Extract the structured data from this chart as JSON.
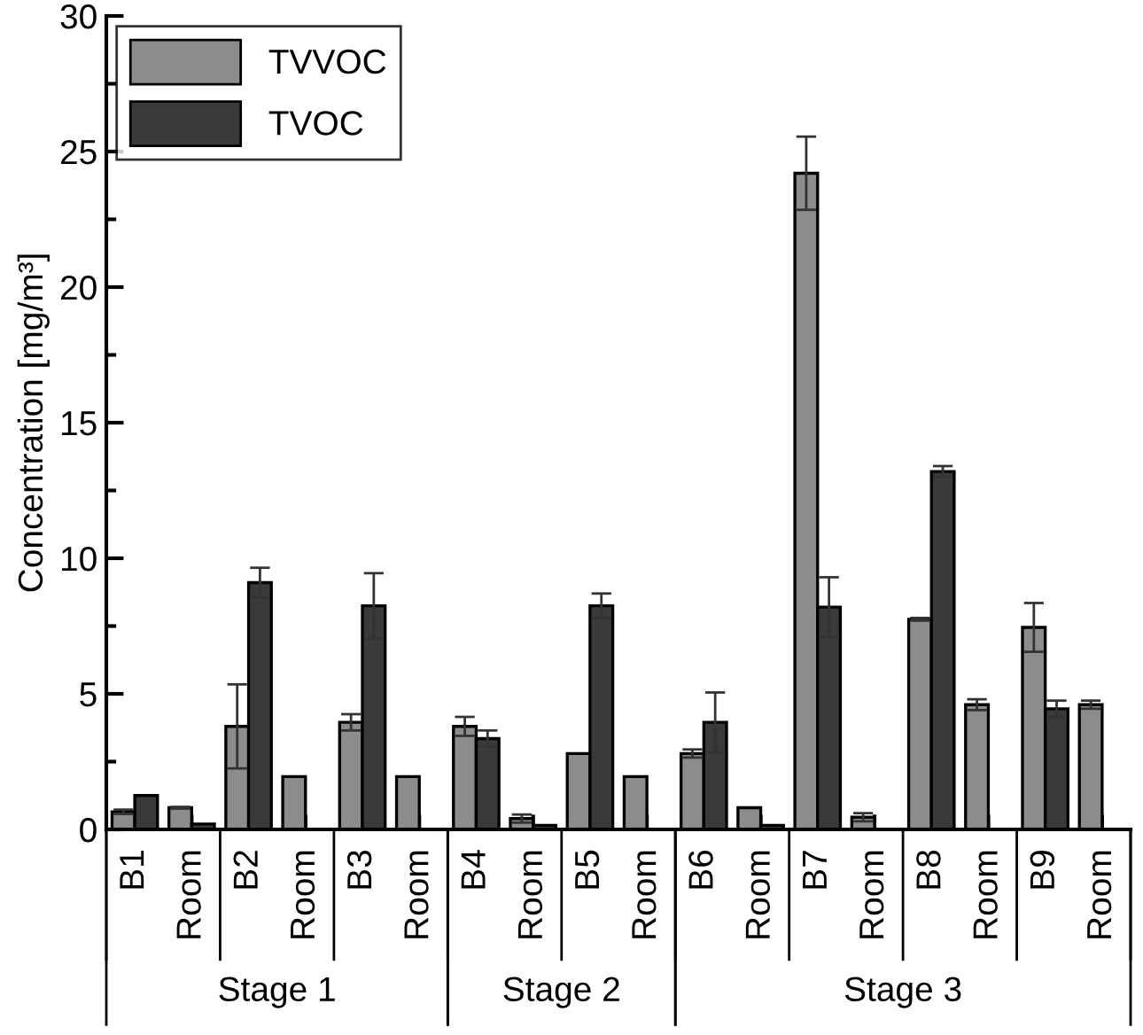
{
  "chart_data": {
    "type": "bar",
    "ylabel": "Concentration [mg/m³]",
    "categories": [
      "B1",
      "Room",
      "B2",
      "Room",
      "B3",
      "Room",
      "B4",
      "Room",
      "B5",
      "Room",
      "B6",
      "Room",
      "B7",
      "Room",
      "B8",
      "Room",
      "B9",
      "Room"
    ],
    "series": [
      {
        "name": "TVVOC",
        "color": "#8c8c8c",
        "values": [
          0.65,
          0.8,
          3.8,
          1.95,
          3.95,
          1.95,
          3.8,
          0.4,
          2.8,
          1.95,
          2.8,
          0.8,
          24.2,
          0.45,
          7.75,
          4.6,
          7.45,
          4.6
        ],
        "errors": [
          0.08,
          0.03,
          1.55,
          null,
          0.3,
          null,
          0.35,
          0.15,
          null,
          null,
          0.15,
          null,
          1.35,
          0.15,
          0.05,
          0.2,
          0.9,
          0.15
        ]
      },
      {
        "name": "TVOC",
        "color": "#3a3a3a",
        "values": [
          1.25,
          0.2,
          9.1,
          null,
          8.25,
          null,
          3.35,
          0.15,
          8.25,
          null,
          3.95,
          0.15,
          8.2,
          null,
          13.2,
          null,
          4.45,
          null
        ],
        "errors": [
          null,
          null,
          0.55,
          null,
          1.2,
          null,
          0.3,
          null,
          0.45,
          null,
          1.1,
          null,
          1.1,
          null,
          0.2,
          null,
          0.3,
          null
        ]
      }
    ],
    "ylim": [
      0,
      30
    ],
    "yticks": [
      0,
      5,
      10,
      15,
      20,
      25,
      30
    ],
    "annotations": [
      "Stage 1",
      "Stage 2",
      "Stage 3"
    ],
    "grid": false,
    "legend": "top left"
  }
}
